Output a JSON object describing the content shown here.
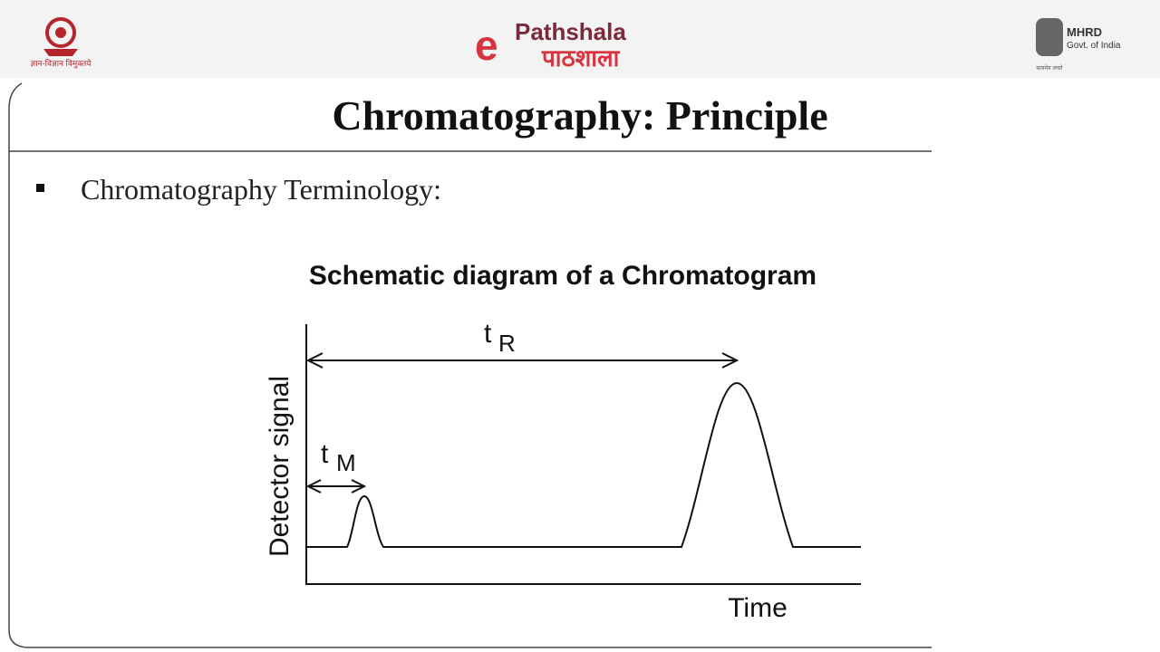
{
  "header": {
    "left_caption": "ज्ञान-विज्ञान विमुक्तये",
    "logo_mark": "e",
    "logo_en": "Pathshala",
    "logo_hi": "पाठशाला",
    "right_title": "MHRD",
    "right_subtitle": "Govt. of India",
    "right_motto": "सत्यमेव जयते"
  },
  "slide": {
    "title": "Chromatography: Principle",
    "bullets": [
      "Chromatography Terminology:"
    ]
  },
  "figure": {
    "title": "Schematic diagram of a Chromatogram",
    "y_label": "Detector signal",
    "x_label": "Time",
    "tr_label": {
      "main": "t",
      "sub": "R"
    },
    "tm_label": {
      "main": "t",
      "sub": "M"
    }
  }
}
